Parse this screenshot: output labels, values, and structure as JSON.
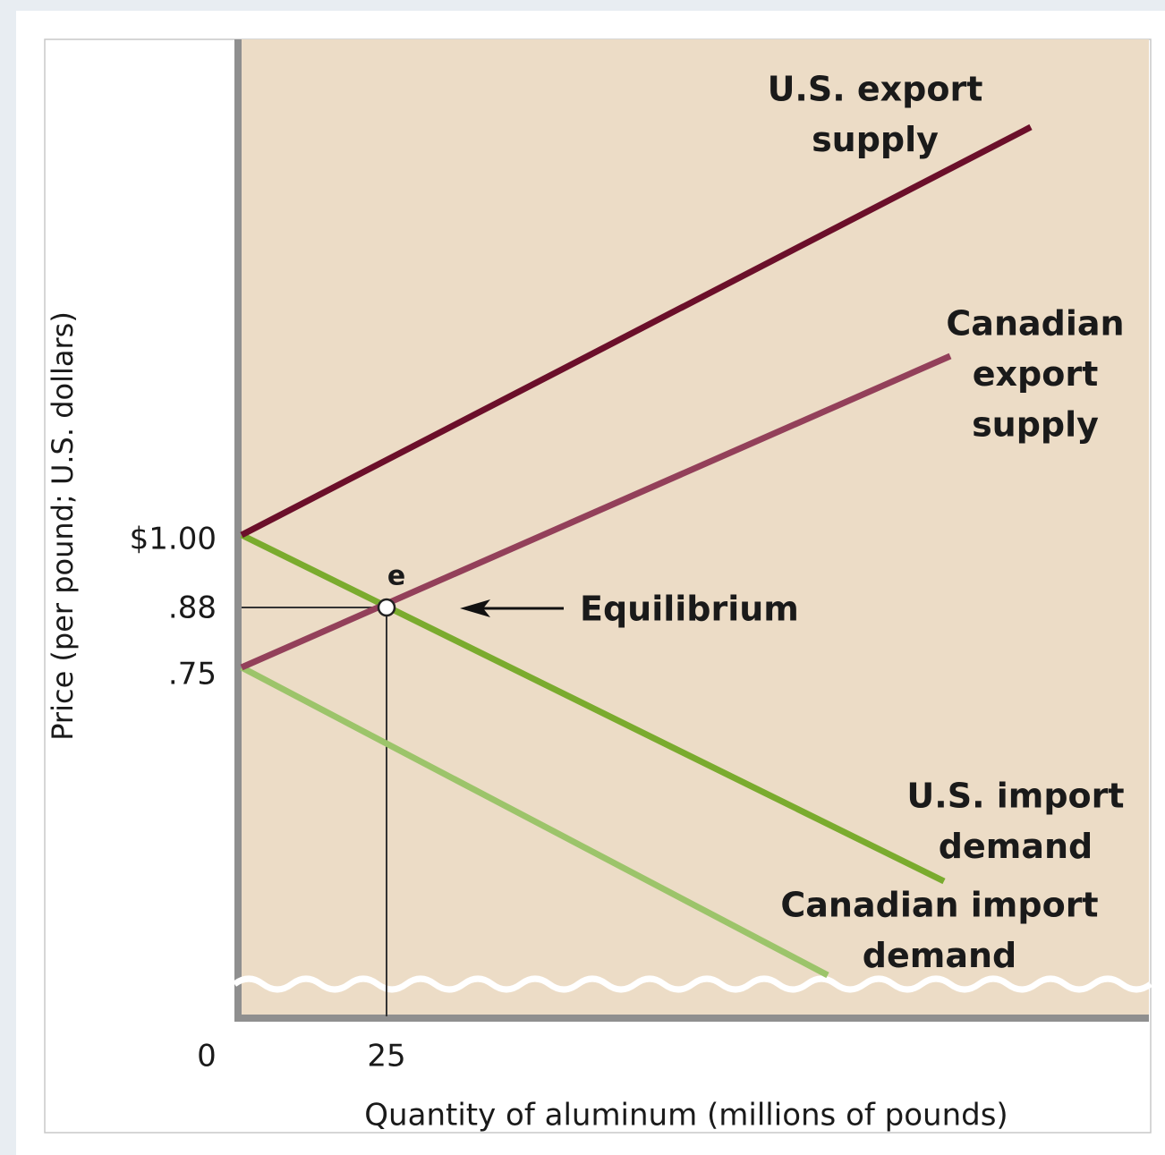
{
  "diagram": {
    "y_axis_label": "Price (per pound; U.S. dollars)",
    "x_axis_label": "Quantity of aluminum (millions of pounds)",
    "y_tick_labels": [
      "$1.00",
      ".88",
      ".75"
    ],
    "x_tick_labels": [
      "0",
      "25"
    ],
    "curves": [
      {
        "label": [
          "U.S. export",
          "supply"
        ]
      },
      {
        "label": [
          "Canadian",
          "export",
          "supply"
        ]
      },
      {
        "label": [
          "U.S. import",
          "demand"
        ]
      },
      {
        "label": [
          "Canadian import",
          "demand"
        ]
      }
    ],
    "point_label": "e",
    "annotation": "Equilibrium"
  }
}
